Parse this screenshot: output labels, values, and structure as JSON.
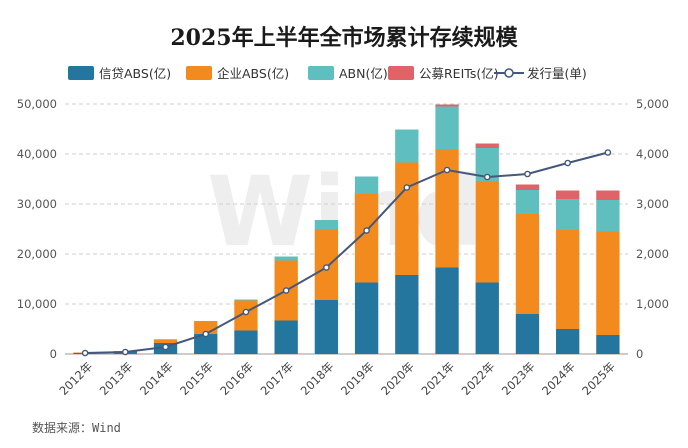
{
  "chart_data": {
    "type": "bar",
    "stacked": true,
    "title": "2025年上半年全市场累计存续规模",
    "categories": [
      "2012年",
      "2013年",
      "2014年",
      "2015年",
      "2016年",
      "2017年",
      "2018年",
      "2019年",
      "2020年",
      "2021年",
      "2022年",
      "2023年",
      "2024年",
      "2025年"
    ],
    "series": [
      {
        "name": "信贷ABS(亿)",
        "type": "bar",
        "axis": "left",
        "color": "#25769f",
        "values": [
          250,
          500,
          2200,
          4000,
          4700,
          6700,
          10800,
          14300,
          15800,
          17300,
          14300,
          8000,
          5000,
          3800
        ]
      },
      {
        "name": "企业ABS(亿)",
        "type": "bar",
        "axis": "left",
        "color": "#f28a1d",
        "values": [
          50,
          100,
          700,
          2500,
          6000,
          12000,
          14200,
          17700,
          22500,
          23700,
          20200,
          20000,
          19800,
          20700
        ]
      },
      {
        "name": "ABN(亿)",
        "type": "bar",
        "axis": "left",
        "color": "#5fbfbe",
        "values": [
          0,
          0,
          50,
          100,
          200,
          800,
          1800,
          3500,
          6600,
          8500,
          6700,
          4800,
          6200,
          6300
        ]
      },
      {
        "name": "公募REITs(亿)",
        "type": "bar",
        "axis": "left",
        "color": "#e06368",
        "values": [
          0,
          0,
          0,
          0,
          0,
          0,
          0,
          0,
          0,
          400,
          900,
          1100,
          1700,
          1900
        ]
      },
      {
        "name": "发行量(单)",
        "type": "line",
        "axis": "right",
        "color": "#44587d",
        "values": [
          20,
          40,
          140,
          400,
          840,
          1270,
          1730,
          2470,
          3330,
          3680,
          3540,
          3600,
          3820,
          4030
        ]
      }
    ],
    "ylim_left": [
      0,
      50000
    ],
    "yticks_left": [
      "0",
      "10,000",
      "20,000",
      "30,000",
      "40,000",
      "50,000"
    ],
    "ylim_right": [
      0,
      5000
    ],
    "yticks_right": [
      "0",
      "1,000",
      "2,000",
      "3,000",
      "4,000",
      "5,000"
    ],
    "grid": true,
    "legend_position": "top"
  },
  "source_note": "数据来源：Wind",
  "watermark": "Wind"
}
